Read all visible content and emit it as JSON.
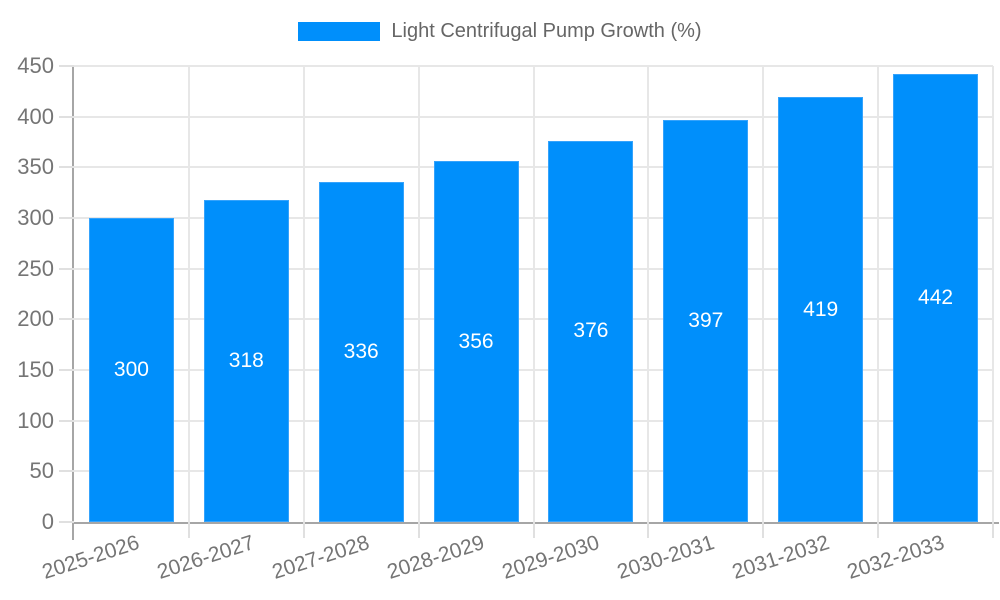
{
  "chart_data": {
    "type": "bar",
    "title": "",
    "legend": {
      "position": "top",
      "items": [
        {
          "label": "Light Centrifugal Pump Growth (%)",
          "color": "#008FFB"
        }
      ]
    },
    "categories": [
      "2025-2026",
      "2026-2027",
      "2027-2028",
      "2028-2029",
      "2029-2030",
      "2030-2031",
      "2031-2032",
      "2032-2033"
    ],
    "series": [
      {
        "name": "Light Centrifugal Pump Growth (%)",
        "color": "#008FFB",
        "values": [
          300,
          318,
          336,
          356,
          376,
          397,
          419,
          442
        ]
      }
    ],
    "value_labels": {
      "visible": true,
      "placement": "inside-center",
      "color": "#FFFFFF"
    },
    "y_axis": {
      "min": 0,
      "max": 450,
      "tick_step": 50,
      "ticks": [
        0,
        50,
        100,
        150,
        200,
        250,
        300,
        350,
        400,
        450
      ]
    },
    "x_axis": {
      "label_rotation_deg": -18
    },
    "grid": {
      "horizontal": true,
      "vertical": true
    },
    "colors": {
      "background": "#FFFFFF",
      "bar": "#008FFB",
      "bar_border": "#35A3FC",
      "bar_label_text": "#FFFFFF",
      "gridline": "#E7E7E7",
      "tick": "#E0E0E0",
      "axis_line": "#A6A6A6",
      "axis_label_text": "#757575",
      "legend_text": "#666666"
    }
  }
}
